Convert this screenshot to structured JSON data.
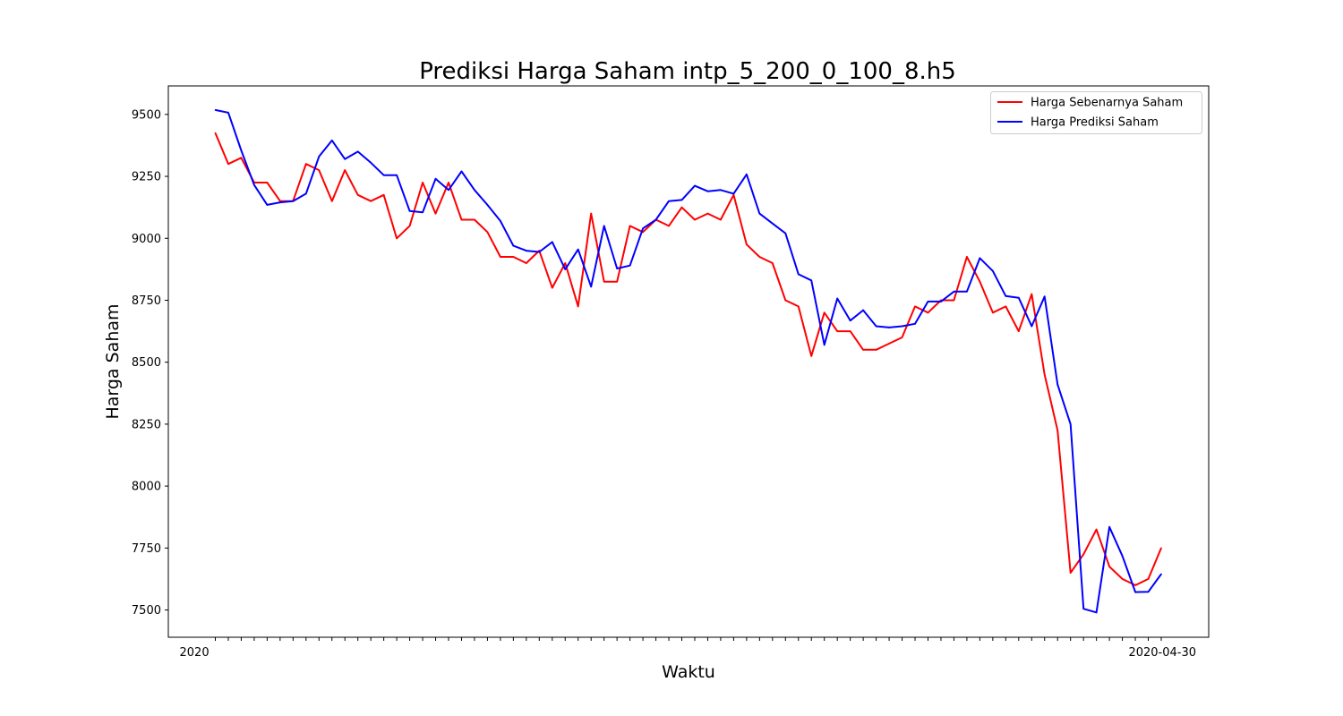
{
  "chart_data": {
    "type": "line",
    "title": "Prediksi Harga Saham intp_5_200_0_100_8.h5",
    "xlabel": "Waktu",
    "ylabel": "Harga Saham",
    "ylim": [
      7390,
      9615
    ],
    "y_ticks": [
      7500,
      7750,
      8000,
      8250,
      8500,
      8750,
      9000,
      9250,
      9500
    ],
    "grid": false,
    "legend_position": "top-right",
    "x_tick_labels": {
      "first": "2020",
      "last": "2020-04-30"
    },
    "series": [
      {
        "name": "Harga Sebenarnya Saham",
        "color": "#ff0000",
        "values": [
          9425,
          9300,
          9325,
          9225,
          9225,
          9150,
          9150,
          9300,
          9275,
          9150,
          9275,
          9175,
          9150,
          9175,
          9000,
          9050,
          9225,
          9100,
          9225,
          9075,
          9075,
          9025,
          8925,
          8925,
          8900,
          8950,
          8800,
          8900,
          8725,
          9100,
          8825,
          8825,
          9050,
          9025,
          9075,
          9050,
          9125,
          9075,
          9100,
          9075,
          9175,
          8975,
          8925,
          8900,
          8750,
          8725,
          8525,
          8700,
          8625,
          8625,
          8550,
          8550,
          8575,
          8600,
          8725,
          8700,
          8750,
          8750,
          8925,
          8825,
          8700,
          8725,
          8625,
          8775,
          8450,
          8225,
          7650,
          7725,
          7825,
          7675,
          7625,
          7600,
          7625,
          7750
        ]
      },
      {
        "name": "Harga Prediksi Saham",
        "color": "#0000ff",
        "values": [
          9518,
          9507,
          9355,
          9215,
          9135,
          9145,
          9150,
          9180,
          9330,
          9395,
          9320,
          9350,
          9305,
          9255,
          9255,
          9110,
          9105,
          9240,
          9195,
          9270,
          9195,
          9135,
          9070,
          8970,
          8950,
          8945,
          8985,
          8875,
          8955,
          8805,
          9050,
          8878,
          8890,
          9040,
          9075,
          9150,
          9155,
          9212,
          9190,
          9195,
          9180,
          9258,
          9100,
          9060,
          9020,
          8855,
          8830,
          8570,
          8757,
          8668,
          8710,
          8645,
          8640,
          8645,
          8655,
          8745,
          8745,
          8785,
          8785,
          8920,
          8868,
          8767,
          8760,
          8645,
          8765,
          8410,
          8250,
          7505,
          7490,
          7835,
          7718,
          7572,
          7573,
          7645
        ]
      }
    ]
  }
}
